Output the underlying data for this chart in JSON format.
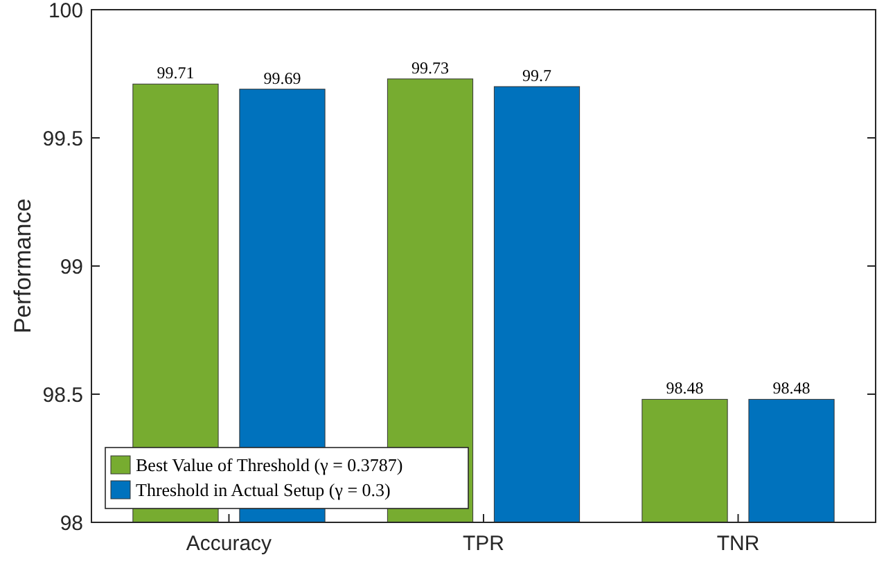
{
  "chart_data": {
    "type": "bar",
    "ylabel": "Performance",
    "categories": [
      "Accuracy",
      "TPR",
      "TNR"
    ],
    "series": [
      {
        "name": "Best Value of Threshold (γ = 0.3787)",
        "color": "#77ac30",
        "values": [
          99.71,
          99.73,
          98.48
        ]
      },
      {
        "name": "Threshold in Actual Setup (γ = 0.3)",
        "color": "#0072bd",
        "values": [
          99.69,
          99.7,
          98.48
        ]
      }
    ],
    "ylim": [
      98,
      100
    ],
    "yticks": [
      98,
      98.5,
      99,
      99.5,
      100
    ],
    "grid": false,
    "legend": "bottom left",
    "data_labels": true
  }
}
